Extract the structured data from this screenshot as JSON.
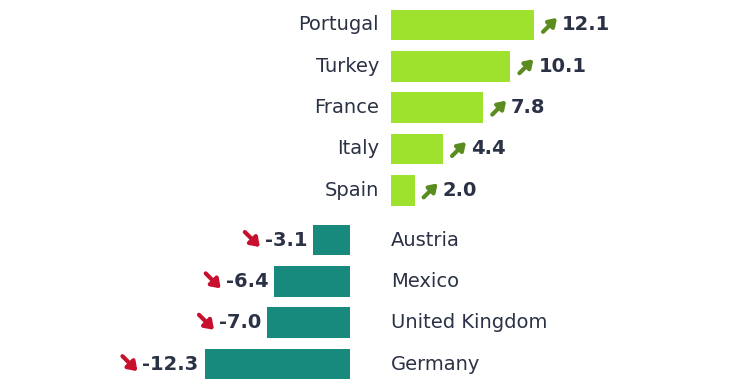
{
  "chart_data": {
    "type": "bar",
    "orientation": "horizontal",
    "categories": [
      "Portugal",
      "Turkey",
      "France",
      "Italy",
      "Spain",
      "Austria",
      "Mexico",
      "United Kingdom",
      "Germany"
    ],
    "values": [
      12.1,
      10.1,
      7.8,
      4.4,
      2.0,
      -3.1,
      -6.4,
      -7.0,
      -12.3
    ],
    "colors": [
      "#9fe22e",
      "#9fe22e",
      "#9fe22e",
      "#9fe22e",
      "#9fe22e",
      "#17897d",
      "#17897d",
      "#17897d",
      "#17897d"
    ],
    "data_labels": true,
    "tick_labels": false
  }
}
